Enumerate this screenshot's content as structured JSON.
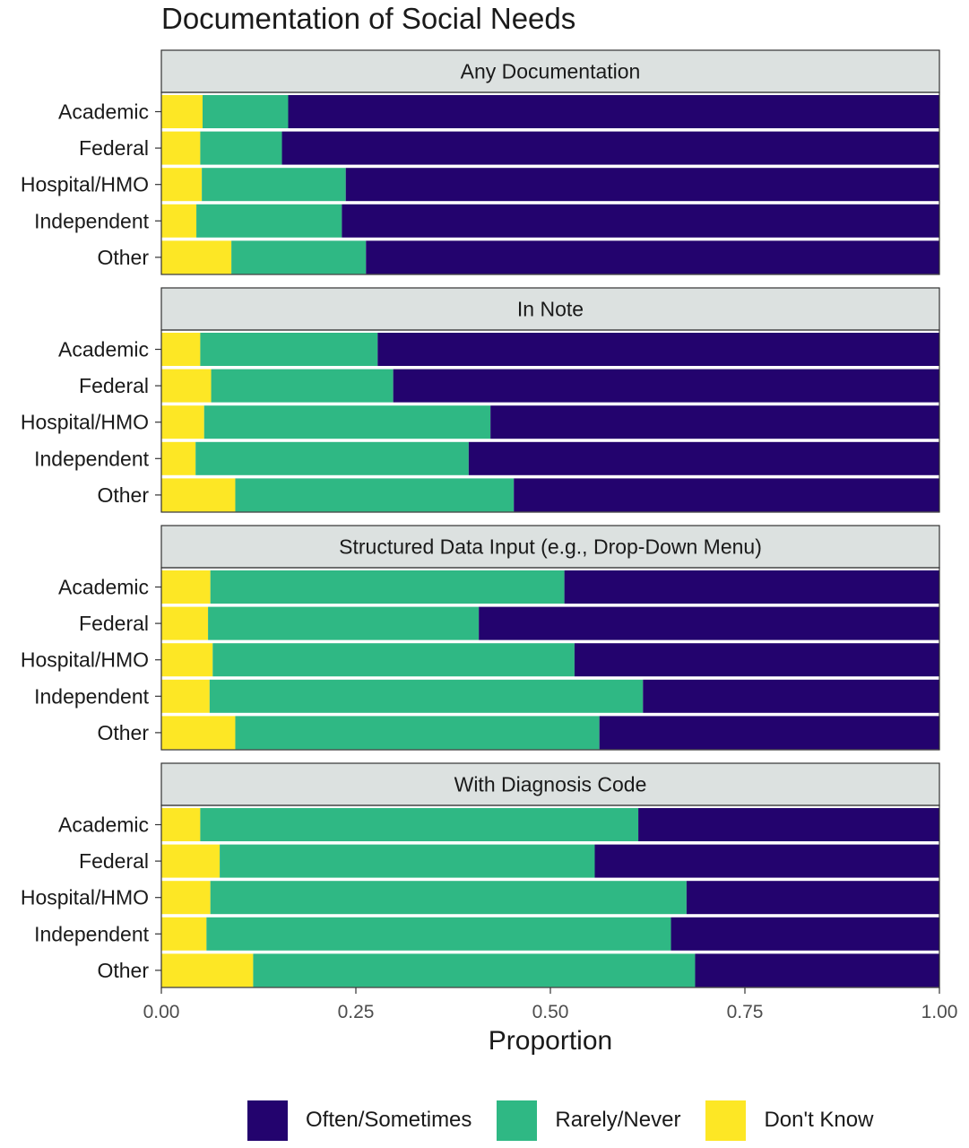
{
  "chart_data": {
    "type": "bar",
    "orientation": "horizontal",
    "stacked": true,
    "title": "Documentation of Social Needs",
    "xlabel": "Proportion",
    "ylabel": "",
    "xlim": [
      0,
      1
    ],
    "x_ticks": [
      "0.00",
      "0.25",
      "0.50",
      "0.75",
      "1.00"
    ],
    "x_tick_values": [
      0,
      0.25,
      0.5,
      0.75,
      1
    ],
    "grid": false,
    "legend_position": "bottom",
    "categories": [
      "Academic",
      "Federal",
      "Hospital/HMO",
      "Independent",
      "Other"
    ],
    "series": [
      {
        "name": "Don't Know",
        "color": "#fde725"
      },
      {
        "name": "Rarely/Never",
        "color": "#2fb884"
      },
      {
        "name": "Often/Sometimes",
        "color": "#23036e"
      }
    ],
    "legend_order": [
      "Often/Sometimes",
      "Rarely/Never",
      "Don't Know"
    ],
    "facets": [
      {
        "title": "Any Documentation",
        "values": {
          "Don't Know": [
            0.053,
            0.05,
            0.052,
            0.045,
            0.09
          ],
          "Rarely/Never": [
            0.11,
            0.105,
            0.185,
            0.187,
            0.173
          ],
          "Often/Sometimes": [
            0.837,
            0.845,
            0.763,
            0.768,
            0.737
          ]
        }
      },
      {
        "title": "In Note",
        "values": {
          "Don't Know": [
            0.05,
            0.064,
            0.055,
            0.044,
            0.095
          ],
          "Rarely/Never": [
            0.228,
            0.234,
            0.368,
            0.351,
            0.358
          ],
          "Often/Sometimes": [
            0.722,
            0.702,
            0.577,
            0.605,
            0.547
          ]
        }
      },
      {
        "title": "Structured Data Input (e.g., Drop-Down Menu)",
        "values": {
          "Don't Know": [
            0.063,
            0.06,
            0.066,
            0.062,
            0.095
          ],
          "Rarely/Never": [
            0.455,
            0.348,
            0.465,
            0.557,
            0.468
          ],
          "Often/Sometimes": [
            0.482,
            0.592,
            0.469,
            0.381,
            0.437
          ]
        }
      },
      {
        "title": "With Diagnosis Code",
        "values": {
          "Don't Know": [
            0.05,
            0.075,
            0.063,
            0.058,
            0.118
          ],
          "Rarely/Never": [
            0.563,
            0.482,
            0.612,
            0.597,
            0.568
          ],
          "Often/Sometimes": [
            0.387,
            0.443,
            0.325,
            0.345,
            0.314
          ]
        }
      }
    ]
  },
  "colors": {
    "strip_background": "#dce1e0",
    "panel_border": "#333333",
    "text": "#1a1a1a"
  }
}
